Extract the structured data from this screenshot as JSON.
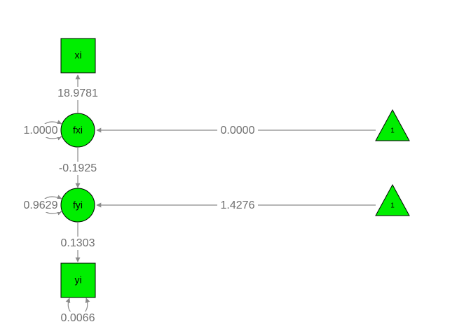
{
  "colors": {
    "node_fill": "#00ee00",
    "node_stroke": "#000000",
    "edge": "#8a8a8a",
    "label": "#6f6f6f"
  },
  "nodes": {
    "xi": "xi",
    "fxi": "fxi",
    "fyi": "fyi",
    "yi": "yi",
    "const_fxi": "1",
    "const_fyi": "1"
  },
  "paths": {
    "fxi_to_xi": "18.9781",
    "fxi_var": "1.0000",
    "const_to_fxi": "0.0000",
    "fxi_to_fyi": "-0.1925",
    "fyi_var": "0.9629",
    "const_to_fyi": "1.4276",
    "fyi_to_yi": "0.1303",
    "yi_var": "0.0066"
  }
}
